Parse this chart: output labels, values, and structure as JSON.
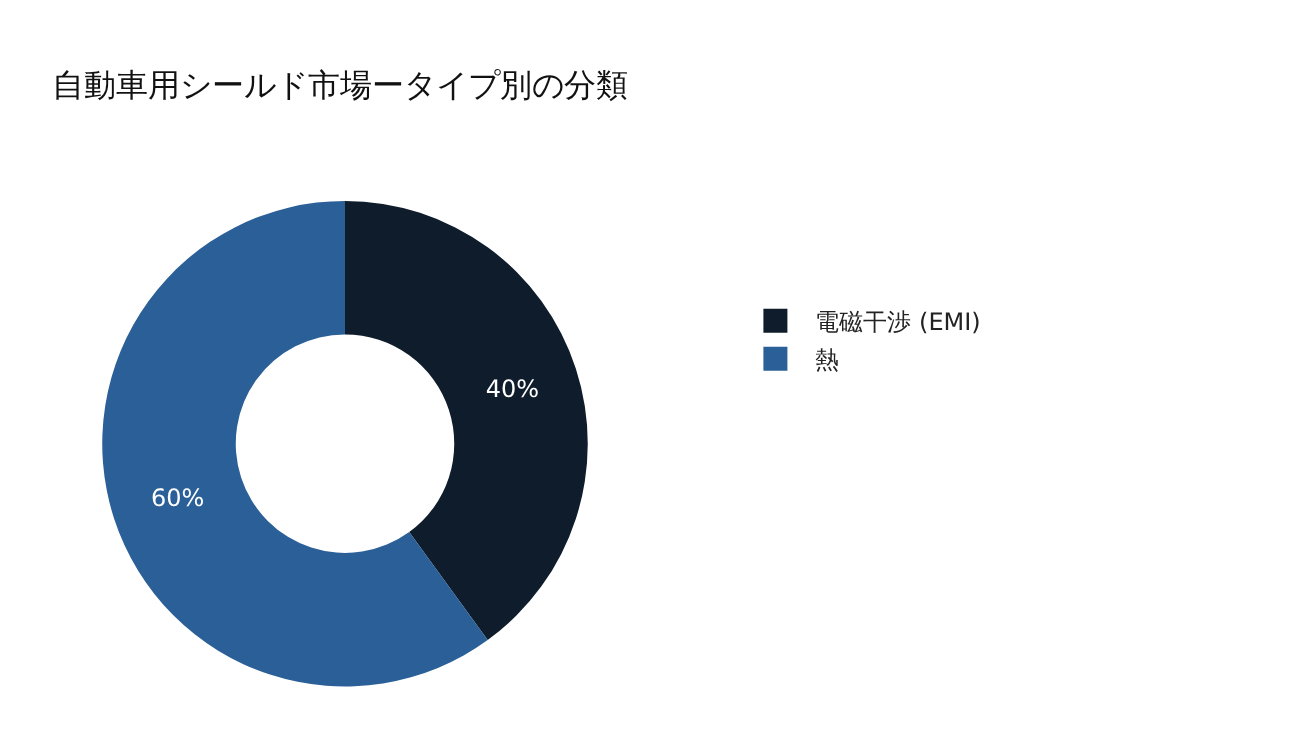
{
  "chart_data": {
    "type": "donut",
    "title": "自動車用シールド市場ータイプ別の分類",
    "categories": [
      "電磁干渉 (EMI)",
      "熱"
    ],
    "values": [
      40,
      60
    ],
    "colors": [
      "#0e1c2b",
      "#2b5f97"
    ],
    "value_labels": [
      "40%",
      "60%"
    ],
    "legend": "right"
  }
}
